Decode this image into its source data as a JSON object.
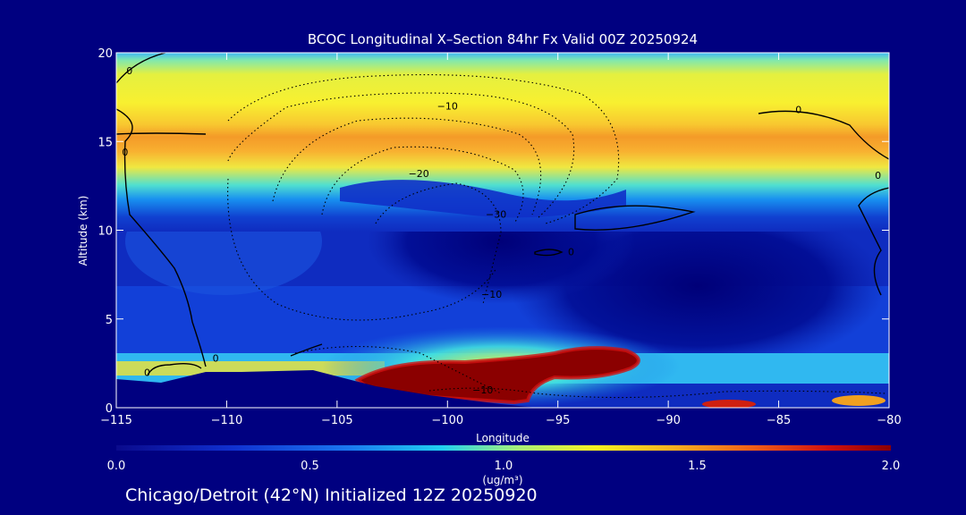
{
  "chart_data": {
    "type": "heatmap",
    "title": "BCOC Longitudinal X–Section 84hr  Fx Valid 00Z 20250924",
    "xlabel": "Longitude",
    "ylabel": "Altitude (km)",
    "xlim": [
      -115,
      -80
    ],
    "ylim": [
      0,
      20
    ],
    "x_ticks": [
      -115,
      -110,
      -105,
      -100,
      -95,
      -90,
      -85,
      -80
    ],
    "x_tick_labels": [
      "−115",
      "−110",
      "−105",
      "−100",
      "−95",
      "−90",
      "−85",
      "−80"
    ],
    "y_ticks": [
      0,
      5,
      10,
      15,
      20
    ],
    "y_tick_labels": [
      "0",
      "5",
      "10",
      "15",
      "20"
    ],
    "colorbar": {
      "range": [
        0.0,
        2.0
      ],
      "ticks": [
        0.0,
        0.5,
        1.0,
        1.5,
        2.0
      ],
      "tick_labels": [
        "0.0",
        "0.5",
        "1.0",
        "1.5",
        "2.0"
      ],
      "unit_label": "(ug/m³)"
    },
    "layers": [
      {
        "name": "upper-band-top",
        "alt_km": [
          19.0,
          20.0
        ],
        "value": 0.6
      },
      {
        "name": "upper-band-yellow",
        "alt_km": [
          16.3,
          19.0
        ],
        "value": 1.25
      },
      {
        "name": "upper-band-core",
        "alt_km": [
          13.7,
          16.3
        ],
        "value": 1.45
      },
      {
        "name": "upper-band-lower-edge",
        "alt_km": [
          12.3,
          13.7
        ],
        "value": 0.8
      },
      {
        "name": "troposphere-background",
        "alt_km": [
          2.5,
          12.3
        ],
        "value": 0.3
      },
      {
        "name": "boundary-layer",
        "alt_km": [
          1.5,
          3.1
        ],
        "value": 1.1
      }
    ],
    "plumes": [
      {
        "name": "smoke-plume-main",
        "lon": -97.5,
        "alt_km": 2.0,
        "value": 2.0
      },
      {
        "name": "smoke-plume-east",
        "lon": -94.0,
        "alt_km": 2.5,
        "value": 2.0
      }
    ],
    "contour_labels": [
      {
        "text": "0",
        "lon": -114.4,
        "alt_km": 18.8
      },
      {
        "text": "0",
        "lon": -114.6,
        "alt_km": 14.2
      },
      {
        "text": "−10",
        "lon": -100.0,
        "alt_km": 16.8
      },
      {
        "text": "−20",
        "lon": -101.3,
        "alt_km": 13.0
      },
      {
        "text": "−30",
        "lon": -97.8,
        "alt_km": 10.7
      },
      {
        "text": "−10",
        "lon": -98.0,
        "alt_km": 6.2
      },
      {
        "text": "0",
        "lon": -84.1,
        "alt_km": 16.6
      },
      {
        "text": "0",
        "lon": -80.5,
        "alt_km": 12.9
      },
      {
        "text": "0",
        "lon": -94.4,
        "alt_km": 8.6
      },
      {
        "text": "0",
        "lon": -113.6,
        "alt_km": 1.8
      },
      {
        "text": "0",
        "lon": -110.5,
        "alt_km": 2.6
      },
      {
        "text": "−10",
        "lon": -98.4,
        "alt_km": 0.8
      }
    ]
  },
  "caption": "Chicago/Detroit (42°N) Initialized 12Z 20250920"
}
